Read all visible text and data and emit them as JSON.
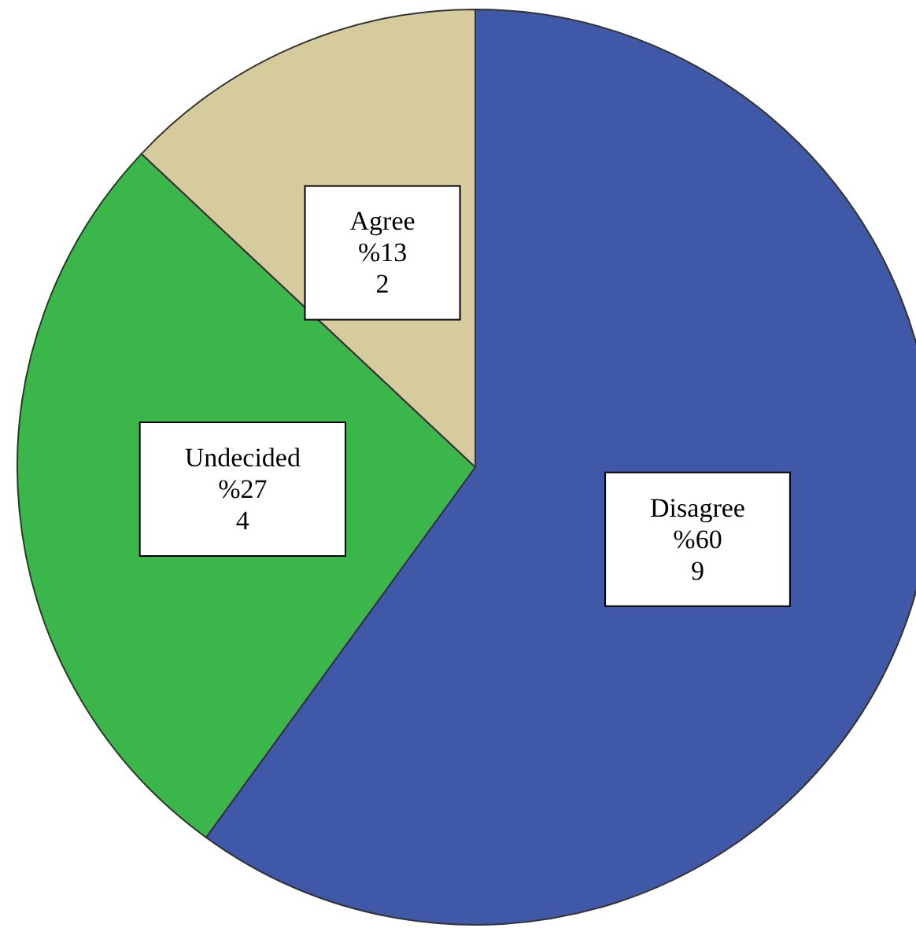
{
  "chart_data": {
    "type": "pie",
    "categories": [
      "Disagree",
      "Undecided",
      "Agree"
    ],
    "values": [
      60,
      27,
      13
    ],
    "colors": [
      "#3f59a8",
      "#3bb64a",
      "#d6cb9c"
    ],
    "value_labels": [
      "%60\n9",
      "%27\n4",
      "%13\n2"
    ],
    "legend": false
  }
}
